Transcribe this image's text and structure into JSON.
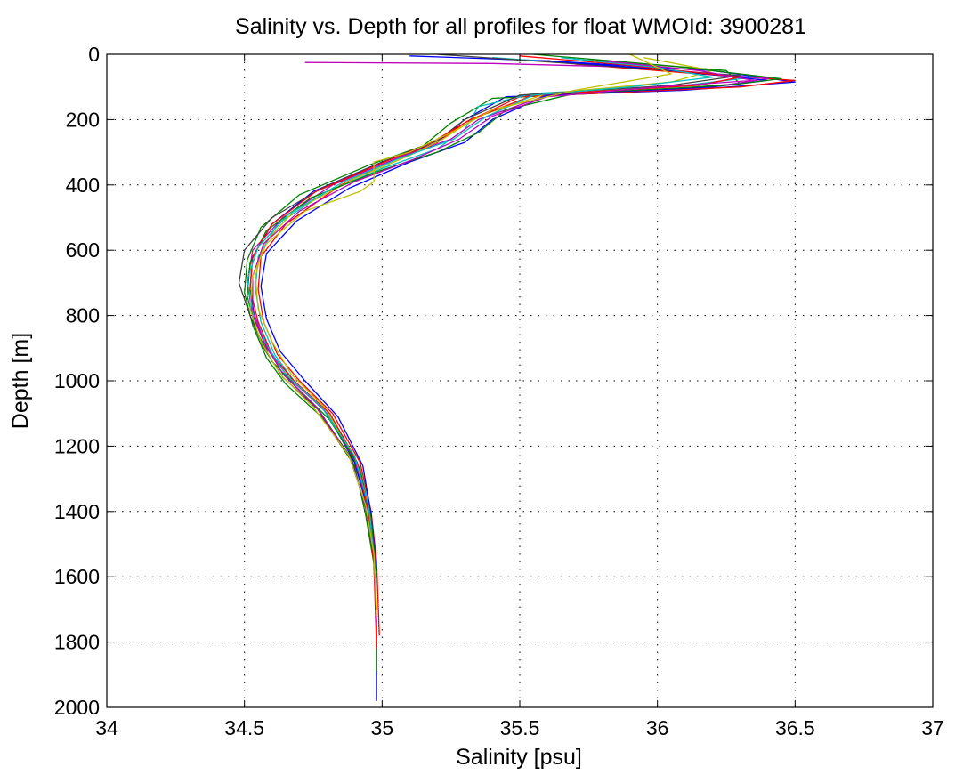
{
  "chart_data": {
    "type": "line",
    "title": "Salinity vs. Depth for all profiles for float WMOId: 3900281",
    "xlabel": "Salinity [psu]",
    "ylabel": "Depth [m]",
    "xlim": [
      34,
      37
    ],
    "ylim": [
      0,
      2000
    ],
    "y_reversed": true,
    "grid": true,
    "xticks": [
      34,
      34.5,
      35,
      35.5,
      36,
      36.5,
      37
    ],
    "xtick_labels": [
      "34",
      "34.5",
      "35",
      "35.5",
      "36",
      "36.5",
      "37"
    ],
    "yticks": [
      0,
      200,
      400,
      600,
      800,
      1000,
      1200,
      1400,
      1600,
      1800,
      2000
    ],
    "ytick_labels": [
      "0",
      "200",
      "400",
      "600",
      "800",
      "1000",
      "1200",
      "1400",
      "1600",
      "1800",
      "2000"
    ],
    "colors": [
      "#0000ff",
      "#008000",
      "#ff0000",
      "#00bfbf",
      "#bf00bf",
      "#bfbf00",
      "#404040"
    ],
    "series": [
      {
        "x": [
          35.1,
          35.6,
          36.2,
          36.5,
          36.1,
          35.45,
          35.3,
          35.2,
          35.0,
          34.75,
          34.6,
          34.53,
          34.52,
          34.54,
          34.6,
          34.68,
          34.8,
          34.9,
          34.95,
          34.97,
          34.98,
          34.98
        ],
        "y": [
          5,
          20,
          50,
          85,
          110,
          130,
          200,
          270,
          330,
          420,
          520,
          620,
          720,
          820,
          920,
          1000,
          1100,
          1250,
          1400,
          1550,
          1750,
          1980
        ]
      },
      {
        "x": [
          35.55,
          35.9,
          36.25,
          36.3,
          35.9,
          35.4,
          35.25,
          35.15,
          34.95,
          34.7,
          34.56,
          34.51,
          34.5,
          34.53,
          34.58,
          34.65,
          34.78,
          34.9,
          34.94,
          34.97,
          34.98,
          34.98
        ],
        "y": [
          0,
          25,
          50,
          90,
          115,
          135,
          210,
          280,
          340,
          430,
          530,
          630,
          730,
          830,
          930,
          1010,
          1110,
          1260,
          1410,
          1560,
          1760,
          1890
        ]
      },
      {
        "x": [
          35.7,
          36.15,
          36.5,
          36.3,
          35.5,
          35.3,
          35.2,
          35.05,
          34.85,
          34.65,
          34.56,
          34.55,
          34.57,
          34.62,
          34.7,
          34.82,
          34.92,
          34.96,
          34.98,
          34.99
        ],
        "y": [
          30,
          60,
          80,
          100,
          130,
          210,
          270,
          320,
          400,
          520,
          620,
          720,
          820,
          920,
          1000,
          1100,
          1250,
          1400,
          1550,
          1780
        ]
      },
      {
        "x": [
          35.4,
          35.9,
          36.35,
          36.1,
          35.55,
          35.35,
          35.3,
          35.2,
          35.0,
          34.8,
          34.62,
          34.55,
          34.54,
          34.56,
          34.61,
          34.68,
          34.8,
          34.91,
          34.95,
          34.97,
          34.98
        ],
        "y": [
          10,
          40,
          70,
          95,
          120,
          160,
          230,
          290,
          350,
          420,
          520,
          620,
          720,
          820,
          920,
          1000,
          1100,
          1250,
          1400,
          1550,
          1700
        ]
      },
      {
        "x": [
          34.72,
          35.4,
          35.95,
          36.4,
          36.2,
          35.6,
          35.35,
          35.25,
          35.05,
          34.82,
          34.64,
          34.53,
          34.51,
          34.53,
          34.58,
          34.66,
          34.79,
          34.9,
          34.95,
          34.97,
          34.98
        ],
        "y": [
          25,
          28,
          40,
          75,
          100,
          125,
          200,
          260,
          320,
          400,
          500,
          600,
          700,
          800,
          900,
          990,
          1090,
          1240,
          1390,
          1540,
          1740
        ]
      },
      {
        "x": [
          35.95,
          36.2,
          36.05,
          35.6,
          35.35,
          35.22,
          35.1,
          34.9,
          34.68,
          34.57,
          34.54,
          34.55,
          34.6,
          34.67,
          34.79,
          34.9,
          34.95,
          34.97,
          34.98
        ],
        "y": [
          10,
          50,
          85,
          120,
          190,
          260,
          310,
          380,
          480,
          580,
          680,
          780,
          880,
          980,
          1080,
          1230,
          1380,
          1530,
          1720
        ]
      },
      {
        "x": [
          35.2,
          35.8,
          36.3,
          36.05,
          35.5,
          35.3,
          35.2,
          35.0,
          34.78,
          34.6,
          34.5,
          34.48,
          34.52,
          34.57,
          34.64,
          34.77,
          34.89,
          34.94,
          34.97,
          34.98
        ],
        "y": [
          0,
          35,
          65,
          95,
          125,
          200,
          265,
          330,
          410,
          500,
          600,
          700,
          800,
          900,
          990,
          1090,
          1240,
          1390,
          1540,
          1740
        ]
      },
      {
        "x": [
          35.6,
          36.0,
          36.4,
          36.2,
          35.6,
          35.4,
          35.3,
          35.1,
          34.88,
          34.69,
          34.58,
          34.56,
          34.58,
          34.63,
          34.72,
          34.84,
          34.93,
          34.96,
          34.98
        ],
        "y": [
          20,
          45,
          80,
          100,
          125,
          200,
          270,
          330,
          410,
          510,
          610,
          710,
          810,
          910,
          1000,
          1110,
          1260,
          1410,
          1580
        ]
      },
      {
        "x": [
          35.75,
          36.1,
          36.45,
          36.25,
          35.7,
          35.45,
          35.35,
          35.2,
          34.98,
          34.74,
          34.58,
          34.52,
          34.51,
          34.54,
          34.6,
          34.69,
          34.81,
          34.92,
          34.96,
          34.98
        ],
        "y": [
          15,
          40,
          75,
          95,
          120,
          170,
          240,
          300,
          360,
          440,
          540,
          640,
          740,
          840,
          940,
          1020,
          1120,
          1270,
          1420,
          1600
        ]
      },
      {
        "x": [
          35.5,
          35.85,
          36.3,
          36.15,
          35.55,
          35.32,
          35.18,
          34.98,
          34.76,
          34.6,
          34.53,
          34.52,
          34.55,
          34.6,
          34.68,
          34.81,
          34.91,
          34.95,
          34.97,
          34.98
        ],
        "y": [
          5,
          30,
          70,
          95,
          125,
          200,
          270,
          340,
          420,
          520,
          620,
          720,
          820,
          920,
          1000,
          1100,
          1250,
          1400,
          1560,
          1820
        ]
      },
      {
        "x": [
          35.65,
          36.0,
          36.2,
          35.9,
          35.55,
          35.38,
          35.26,
          35.06,
          34.86,
          34.66,
          34.55,
          34.51,
          34.53,
          34.58,
          34.65,
          34.78,
          34.9,
          34.95,
          34.97,
          34.98
        ],
        "y": [
          10,
          40,
          70,
          100,
          125,
          190,
          260,
          320,
          390,
          490,
          590,
          690,
          790,
          890,
          980,
          1080,
          1230,
          1380,
          1530,
          1700
        ]
      },
      {
        "x": [
          35.8,
          36.15,
          36.35,
          36.0,
          35.6,
          35.4,
          35.28,
          35.12,
          34.9,
          34.7,
          34.57,
          34.53,
          34.53,
          34.57,
          34.64,
          34.76,
          34.88,
          34.94,
          34.97,
          34.98
        ],
        "y": [
          20,
          50,
          80,
          100,
          130,
          190,
          260,
          320,
          390,
          480,
          580,
          680,
          780,
          880,
          980,
          1080,
          1230,
          1380,
          1530,
          1750
        ]
      },
      {
        "x": [
          35.9,
          36.05,
          35.7,
          35.4,
          35.25,
          35.1,
          34.97,
          34.97,
          34.92,
          34.72,
          34.58,
          34.53,
          34.52,
          34.56,
          34.63,
          34.75,
          34.88,
          34.94,
          34.97,
          34.98
        ],
        "y": [
          0,
          60,
          110,
          170,
          240,
          300,
          330,
          390,
          420,
          480,
          580,
          680,
          780,
          880,
          980,
          1080,
          1230,
          1380,
          1530,
          1720
        ]
      }
    ]
  }
}
